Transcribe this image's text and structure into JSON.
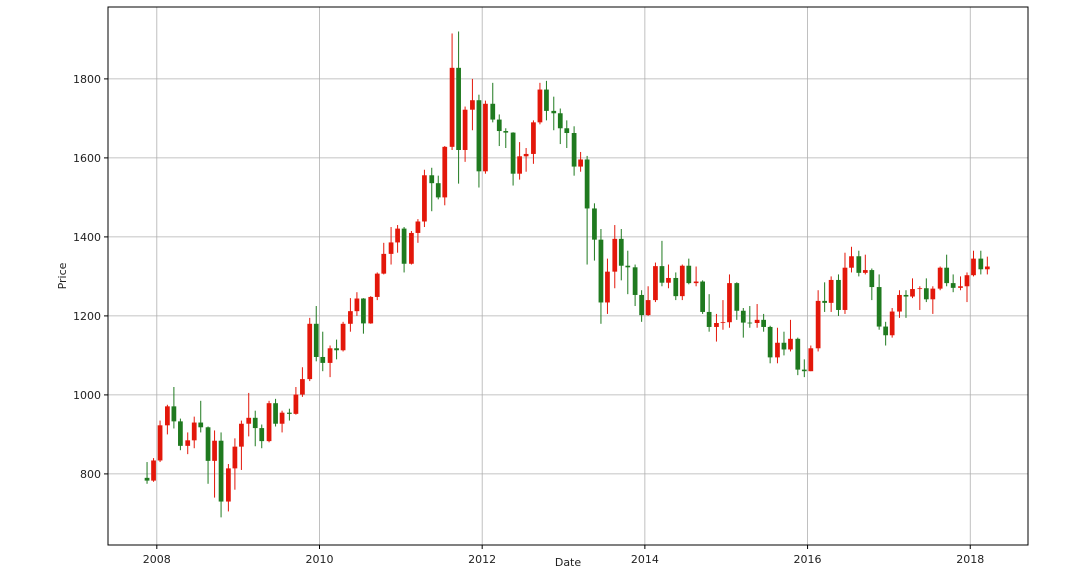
{
  "chart_data": {
    "type": "candlestick",
    "xlabel": "Date",
    "ylabel": "Price",
    "xlim": [
      2007.4,
      2018.71
    ],
    "ylim": [
      620,
      1982
    ],
    "xticks": [
      2008,
      2010,
      2012,
      2014,
      2016,
      2018
    ],
    "yticks": [
      800,
      1000,
      1200,
      1400,
      1600,
      1800
    ],
    "grid": true,
    "up_color": "#e3170a",
    "down_color": "#1f7a1f",
    "x": [
      2007.88,
      2007.96,
      2008.04,
      2008.13,
      2008.21,
      2008.29,
      2008.38,
      2008.46,
      2008.54,
      2008.63,
      2008.71,
      2008.79,
      2008.88,
      2008.96,
      2009.04,
      2009.13,
      2009.21,
      2009.29,
      2009.38,
      2009.46,
      2009.54,
      2009.63,
      2009.71,
      2009.79,
      2009.88,
      2009.96,
      2010.04,
      2010.13,
      2010.21,
      2010.29,
      2010.38,
      2010.46,
      2010.54,
      2010.63,
      2010.71,
      2010.79,
      2010.88,
      2010.96,
      2011.04,
      2011.13,
      2011.21,
      2011.29,
      2011.38,
      2011.46,
      2011.54,
      2011.63,
      2011.71,
      2011.79,
      2011.88,
      2011.96,
      2012.04,
      2012.13,
      2012.21,
      2012.29,
      2012.38,
      2012.46,
      2012.54,
      2012.63,
      2012.71,
      2012.79,
      2012.88,
      2012.96,
      2013.04,
      2013.13,
      2013.21,
      2013.29,
      2013.38,
      2013.46,
      2013.54,
      2013.63,
      2013.71,
      2013.79,
      2013.88,
      2013.96,
      2014.04,
      2014.13,
      2014.21,
      2014.29,
      2014.38,
      2014.46,
      2014.54,
      2014.63,
      2014.71,
      2014.79,
      2014.88,
      2014.96,
      2015.04,
      2015.13,
      2015.21,
      2015.29,
      2015.38,
      2015.46,
      2015.54,
      2015.63,
      2015.71,
      2015.79,
      2015.88,
      2015.96,
      2016.04,
      2016.13,
      2016.21,
      2016.29,
      2016.38,
      2016.46,
      2016.54,
      2016.63,
      2016.71,
      2016.79,
      2016.88,
      2016.96,
      2017.04,
      2017.13,
      2017.21,
      2017.29,
      2017.38,
      2017.46,
      2017.54,
      2017.63,
      2017.71,
      2017.79,
      2017.88,
      2017.96,
      2018.04,
      2018.13,
      2018.21
    ],
    "open": [
      790,
      783,
      834,
      923,
      971,
      933,
      871,
      885,
      930,
      918,
      833,
      884,
      730,
      814,
      869,
      927,
      942,
      916,
      883,
      979,
      927,
      955,
      952,
      1001,
      1040,
      1180,
      1096,
      1081,
      1118,
      1113,
      1180,
      1212,
      1244,
      1181,
      1248,
      1307,
      1357,
      1386,
      1421,
      1332,
      1410,
      1439,
      1556,
      1536,
      1500,
      1628,
      1828,
      1620,
      1722,
      1746,
      1566,
      1737,
      1697,
      1668,
      1664,
      1560,
      1604,
      1610,
      1690,
      1773,
      1719,
      1713,
      1675,
      1663,
      1578,
      1596,
      1472,
      1393,
      1234,
      1312,
      1395,
      1327,
      1323,
      1253,
      1202,
      1240,
      1326,
      1284,
      1296,
      1250,
      1327,
      1283,
      1287,
      1210,
      1172,
      1182,
      1184,
      1283,
      1213,
      1183,
      1182,
      1190,
      1172,
      1095,
      1132,
      1115,
      1142,
      1064,
      1060,
      1118,
      1238,
      1233,
      1291,
      1215,
      1322,
      1351,
      1309,
      1316,
      1273,
      1173,
      1151,
      1211,
      1253,
      1249,
      1268,
      1270,
      1242,
      1269,
      1322,
      1283,
      1271,
      1275,
      1303,
      1345,
      1318
    ],
    "high": [
      830,
      840,
      935,
      975,
      1020,
      940,
      905,
      945,
      985,
      920,
      910,
      905,
      825,
      890,
      935,
      1005,
      960,
      925,
      985,
      990,
      960,
      965,
      1020,
      1070,
      1195,
      1225,
      1160,
      1125,
      1140,
      1185,
      1245,
      1260,
      1245,
      1250,
      1310,
      1385,
      1425,
      1430,
      1425,
      1415,
      1445,
      1570,
      1575,
      1555,
      1630,
      1915,
      1920,
      1730,
      1800,
      1760,
      1745,
      1790,
      1710,
      1675,
      1665,
      1640,
      1625,
      1695,
      1790,
      1795,
      1755,
      1725,
      1695,
      1680,
      1615,
      1605,
      1485,
      1420,
      1345,
      1430,
      1420,
      1365,
      1330,
      1265,
      1275,
      1335,
      1390,
      1330,
      1310,
      1330,
      1345,
      1325,
      1290,
      1255,
      1205,
      1240,
      1305,
      1285,
      1220,
      1225,
      1230,
      1205,
      1175,
      1170,
      1160,
      1190,
      1145,
      1090,
      1125,
      1265,
      1285,
      1300,
      1305,
      1360,
      1375,
      1365,
      1355,
      1320,
      1305,
      1185,
      1220,
      1265,
      1265,
      1295,
      1275,
      1295,
      1275,
      1325,
      1355,
      1305,
      1300,
      1310,
      1365,
      1365,
      1350
    ],
    "low": [
      775,
      780,
      830,
      900,
      915,
      860,
      850,
      865,
      905,
      775,
      740,
      690,
      705,
      760,
      810,
      895,
      870,
      865,
      880,
      920,
      905,
      935,
      950,
      995,
      1035,
      1085,
      1060,
      1045,
      1090,
      1110,
      1160,
      1200,
      1155,
      1180,
      1240,
      1305,
      1330,
      1360,
      1310,
      1330,
      1385,
      1425,
      1465,
      1495,
      1480,
      1620,
      1535,
      1590,
      1670,
      1525,
      1560,
      1690,
      1630,
      1625,
      1530,
      1545,
      1565,
      1585,
      1685,
      1695,
      1670,
      1635,
      1625,
      1555,
      1565,
      1330,
      1340,
      1180,
      1205,
      1270,
      1290,
      1255,
      1225,
      1185,
      1200,
      1235,
      1275,
      1270,
      1240,
      1240,
      1280,
      1275,
      1205,
      1160,
      1135,
      1165,
      1170,
      1190,
      1145,
      1170,
      1170,
      1160,
      1080,
      1080,
      1100,
      1110,
      1050,
      1045,
      1060,
      1110,
      1210,
      1210,
      1200,
      1205,
      1310,
      1300,
      1305,
      1240,
      1165,
      1125,
      1145,
      1195,
      1195,
      1245,
      1215,
      1235,
      1205,
      1265,
      1275,
      1260,
      1265,
      1235,
      1300,
      1305,
      1305
    ],
    "close": [
      783,
      834,
      923,
      971,
      933,
      871,
      885,
      930,
      918,
      833,
      884,
      730,
      814,
      869,
      927,
      942,
      916,
      883,
      979,
      927,
      955,
      952,
      1001,
      1040,
      1180,
      1096,
      1081,
      1118,
      1113,
      1180,
      1212,
      1244,
      1181,
      1248,
      1307,
      1357,
      1386,
      1421,
      1332,
      1410,
      1439,
      1556,
      1536,
      1500,
      1628,
      1828,
      1620,
      1722,
      1746,
      1566,
      1737,
      1697,
      1668,
      1664,
      1560,
      1604,
      1610,
      1690,
      1773,
      1719,
      1713,
      1675,
      1663,
      1578,
      1596,
      1472,
      1393,
      1234,
      1312,
      1395,
      1327,
      1323,
      1253,
      1202,
      1240,
      1326,
      1284,
      1296,
      1250,
      1327,
      1283,
      1287,
      1210,
      1172,
      1182,
      1184,
      1283,
      1213,
      1183,
      1182,
      1190,
      1172,
      1095,
      1132,
      1115,
      1142,
      1064,
      1060,
      1118,
      1238,
      1233,
      1291,
      1215,
      1322,
      1351,
      1309,
      1316,
      1273,
      1173,
      1151,
      1211,
      1253,
      1249,
      1268,
      1270,
      1242,
      1269,
      1322,
      1283,
      1271,
      1275,
      1303,
      1345,
      1318,
      1325
    ]
  }
}
